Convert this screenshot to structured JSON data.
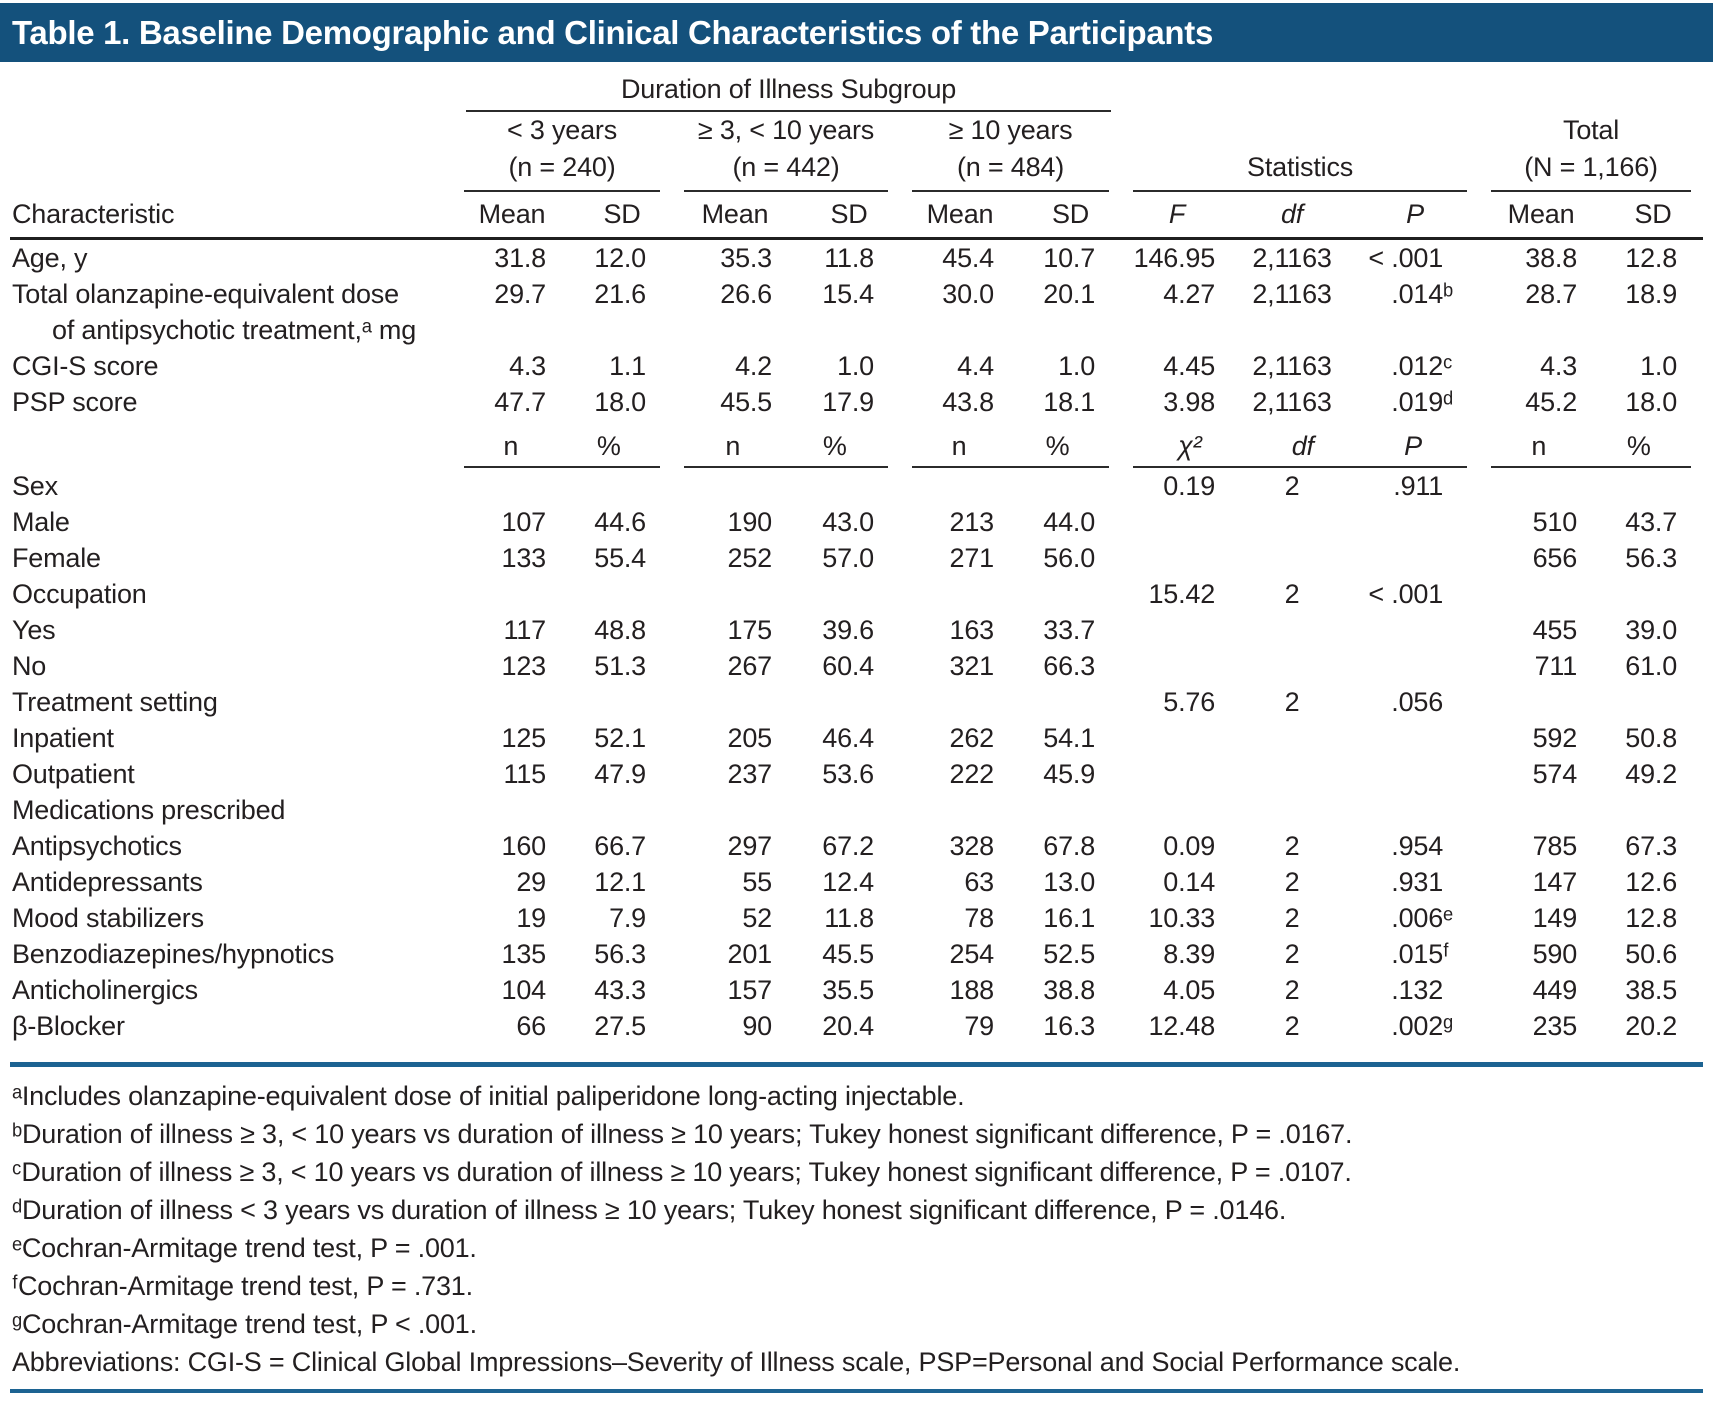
{
  "title": "Table 1. Baseline Demographic and Clinical Characteristics of the Participants",
  "colors": {
    "title_bar_background": "#14517C",
    "title_text": "#FFFFFF",
    "blue_rule": "#1C6392",
    "black_rule": "#2B2B2B",
    "body_text": "#231F20"
  },
  "table": {
    "spanner": "Duration of Illness Subgroup",
    "row_header": "Characteristic",
    "groups": [
      {
        "line1": "< 3 years",
        "line2": "(n = 240)"
      },
      {
        "line1": "≥ 3, < 10 years",
        "line2": "(n = 442)"
      },
      {
        "line1": "≥ 10 years",
        "line2": "(n = 484)"
      },
      {
        "line1": "Statistics",
        "line2": ""
      },
      {
        "line1": "Total",
        "line2": "(N = 1,166)"
      }
    ],
    "measure_headers": [
      "Mean",
      "SD",
      "Mean",
      "SD",
      "Mean",
      "SD",
      "F",
      "df",
      "P",
      "Mean",
      "SD"
    ],
    "mid_headers": [
      "n",
      "%",
      "n",
      "%",
      "n",
      "%",
      "χ²",
      "df",
      "P",
      "n",
      "%"
    ],
    "rows": [
      {
        "label": "Age, y",
        "indent": 0,
        "cells": [
          "31.8",
          "12.0",
          "35.3",
          "11.8",
          "45.4",
          "10.7",
          "146.95",
          "2,1163",
          "< .001",
          "38.8",
          "12.8"
        ]
      },
      {
        "label": "Total olanzapine-equivalent dose",
        "label2": "of antipsychotic treatment,ᵃ mg",
        "indent": 0,
        "cells": [
          "29.7",
          "21.6",
          "26.6",
          "15.4",
          "30.0",
          "20.1",
          "4.27",
          "2,1163",
          ".014ᵇ",
          "28.7",
          "18.9"
        ]
      },
      {
        "label": "CGI-S score",
        "indent": 0,
        "cells": [
          "4.3",
          "1.1",
          "4.2",
          "1.0",
          "4.4",
          "1.0",
          "4.45",
          "2,1163",
          ".012ᶜ",
          "4.3",
          "1.0"
        ]
      },
      {
        "label": "PSP score",
        "indent": 0,
        "cells": [
          "47.7",
          "18.0",
          "45.5",
          "17.9",
          "43.8",
          "18.1",
          "3.98",
          "2,1163",
          ".019ᵈ",
          "45.2",
          "18.0"
        ]
      },
      {
        "type": "midheader"
      },
      {
        "label": "Sex",
        "indent": 0,
        "cells": [
          "",
          "",
          "",
          "",
          "",
          "",
          "0.19",
          "2",
          ".911",
          "",
          ""
        ]
      },
      {
        "label": "Male",
        "indent": 1,
        "cells": [
          "107",
          "44.6",
          "190",
          "43.0",
          "213",
          "44.0",
          "",
          "",
          "",
          "510",
          "43.7"
        ]
      },
      {
        "label": "Female",
        "indent": 1,
        "cells": [
          "133",
          "55.4",
          "252",
          "57.0",
          "271",
          "56.0",
          "",
          "",
          "",
          "656",
          "56.3"
        ]
      },
      {
        "label": "Occupation",
        "indent": 0,
        "cells": [
          "",
          "",
          "",
          "",
          "",
          "",
          "15.42",
          "2",
          "< .001",
          "",
          ""
        ]
      },
      {
        "label": "Yes",
        "indent": 1,
        "cells": [
          "117",
          "48.8",
          "175",
          "39.6",
          "163",
          "33.7",
          "",
          "",
          "",
          "455",
          "39.0"
        ]
      },
      {
        "label": "No",
        "indent": 1,
        "cells": [
          "123",
          "51.3",
          "267",
          "60.4",
          "321",
          "66.3",
          "",
          "",
          "",
          "711",
          "61.0"
        ]
      },
      {
        "label": "Treatment setting",
        "indent": 0,
        "cells": [
          "",
          "",
          "",
          "",
          "",
          "",
          "5.76",
          "2",
          ".056",
          "",
          ""
        ]
      },
      {
        "label": "Inpatient",
        "indent": 1,
        "cells": [
          "125",
          "52.1",
          "205",
          "46.4",
          "262",
          "54.1",
          "",
          "",
          "",
          "592",
          "50.8"
        ]
      },
      {
        "label": "Outpatient",
        "indent": 1,
        "cells": [
          "115",
          "47.9",
          "237",
          "53.6",
          "222",
          "45.9",
          "",
          "",
          "",
          "574",
          "49.2"
        ]
      },
      {
        "label": "Medications prescribed",
        "indent": 0,
        "cells": [
          "",
          "",
          "",
          "",
          "",
          "",
          "",
          "",
          "",
          "",
          ""
        ]
      },
      {
        "label": "Antipsychotics",
        "indent": 1,
        "cells": [
          "160",
          "66.7",
          "297",
          "67.2",
          "328",
          "67.8",
          "0.09",
          "2",
          ".954",
          "785",
          "67.3"
        ]
      },
      {
        "label": "Antidepressants",
        "indent": 1,
        "cells": [
          "29",
          "12.1",
          "55",
          "12.4",
          "63",
          "13.0",
          "0.14",
          "2",
          ".931",
          "147",
          "12.6"
        ]
      },
      {
        "label": "Mood stabilizers",
        "indent": 1,
        "cells": [
          "19",
          "7.9",
          "52",
          "11.8",
          "78",
          "16.1",
          "10.33",
          "2",
          ".006ᵉ",
          "149",
          "12.8"
        ]
      },
      {
        "label": "Benzodiazepines/hypnotics",
        "indent": 1,
        "cells": [
          "135",
          "56.3",
          "201",
          "45.5",
          "254",
          "52.5",
          "8.39",
          "2",
          ".015ᶠ",
          "590",
          "50.6"
        ]
      },
      {
        "label": "Anticholinergics",
        "indent": 1,
        "cells": [
          "104",
          "43.3",
          "157",
          "35.5",
          "188",
          "38.8",
          "4.05",
          "2",
          ".132",
          "449",
          "38.5"
        ]
      },
      {
        "label": "β-Blocker",
        "indent": 1,
        "cells": [
          "66",
          "27.5",
          "90",
          "20.4",
          "79",
          "16.3",
          "12.48",
          "2",
          ".002ᵍ",
          "235",
          "20.2"
        ]
      }
    ]
  },
  "footnotes": [
    "ᵃIncludes olanzapine-equivalent dose of initial paliperidone long-acting injectable.",
    "ᵇDuration of illness ≥ 3, < 10 years vs duration of illness ≥ 10 years; Tukey honest significant difference, P = .0167.",
    "ᶜDuration of illness ≥ 3, < 10 years vs duration of illness ≥ 10 years; Tukey honest significant difference, P = .0107.",
    "ᵈDuration of illness < 3 years vs duration of illness ≥ 10 years; Tukey honest significant difference, P = .0146.",
    "ᵉCochran-Armitage trend test, P = .001.",
    "ᶠCochran-Armitage trend test, P = .731.",
    "ᵍCochran-Armitage trend test, P < .001.",
    "Abbreviations: CGI-S = Clinical Global Impressions–Severity of Illness scale, PSP=Personal and Social Performance scale."
  ]
}
